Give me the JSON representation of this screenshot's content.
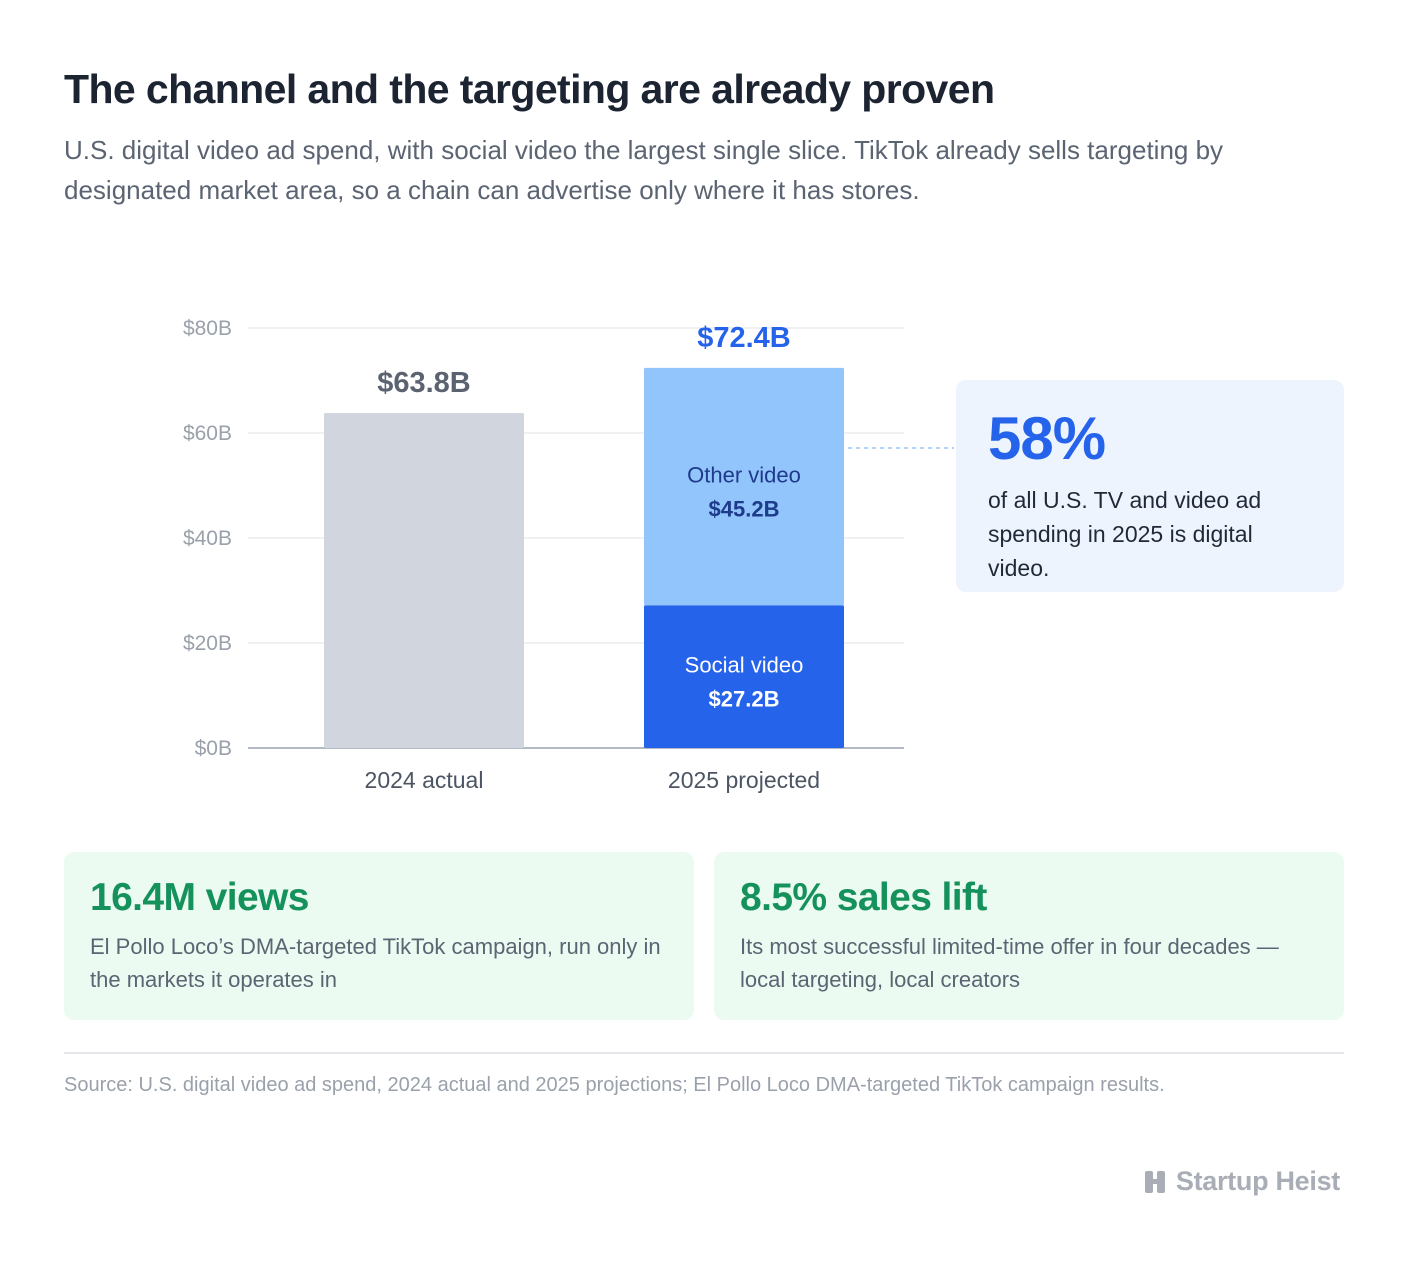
{
  "title": "The channel and the targeting are already proven",
  "subtitle": "U.S. digital video ad spend, with social video the largest single slice. TikTok already sells targeting by designated market area, so a chain can advertise only where it has stores.",
  "chart_data": {
    "type": "bar",
    "stacked": true,
    "categories": [
      "2024 actual",
      "2025 projected"
    ],
    "ylim": [
      0,
      80
    ],
    "yticks": [
      0,
      20,
      40,
      60,
      80
    ],
    "ytick_labels": [
      "$0B",
      "$20B",
      "$40B",
      "$60B",
      "$80B"
    ],
    "grid": true,
    "bars": [
      {
        "category": "2024 actual",
        "total": 63.8,
        "total_label": "$63.8B",
        "segments": [
          {
            "name": "",
            "value": 63.8,
            "label": "",
            "color": "#d1d5de",
            "label_color": "#1f2937"
          }
        ]
      },
      {
        "category": "2025 projected",
        "total": 72.4,
        "total_label": "$72.4B",
        "segments": [
          {
            "name": "Social video",
            "value": 27.2,
            "label": "$27.2B",
            "color": "#2563eb",
            "label_color": "#ffffff"
          },
          {
            "name": "Other video",
            "value": 45.2,
            "label": "$45.2B",
            "color": "#93c5fd",
            "label_color": "#1e3a8a"
          }
        ]
      }
    ],
    "total_label_colors": [
      "#5b6270",
      "#2563eb"
    ]
  },
  "callout": {
    "big": "58%",
    "text": "of all U.S. TV and video ad spending in 2025 is digital video."
  },
  "cards": [
    {
      "headline": "16.4M views",
      "text": "El Pollo Loco’s DMA-targeted TikTok campaign, run only in the markets it operates in"
    },
    {
      "headline": "8.5% sales lift",
      "text": "Its most successful limited-time offer in four decades — local targeting, local creators"
    }
  ],
  "source": "Source: U.S. digital video ad spend, 2024 actual and 2025 projections; El Pollo Loco DMA-targeted TikTok campaign results.",
  "brand": {
    "name": "Startup Heist",
    "icon": "brand-logo-icon"
  },
  "colors": {
    "accent": "#2563eb",
    "green": "#15925c",
    "card_bg": "#ecfbf2",
    "callout_bg": "#eef4fe"
  }
}
